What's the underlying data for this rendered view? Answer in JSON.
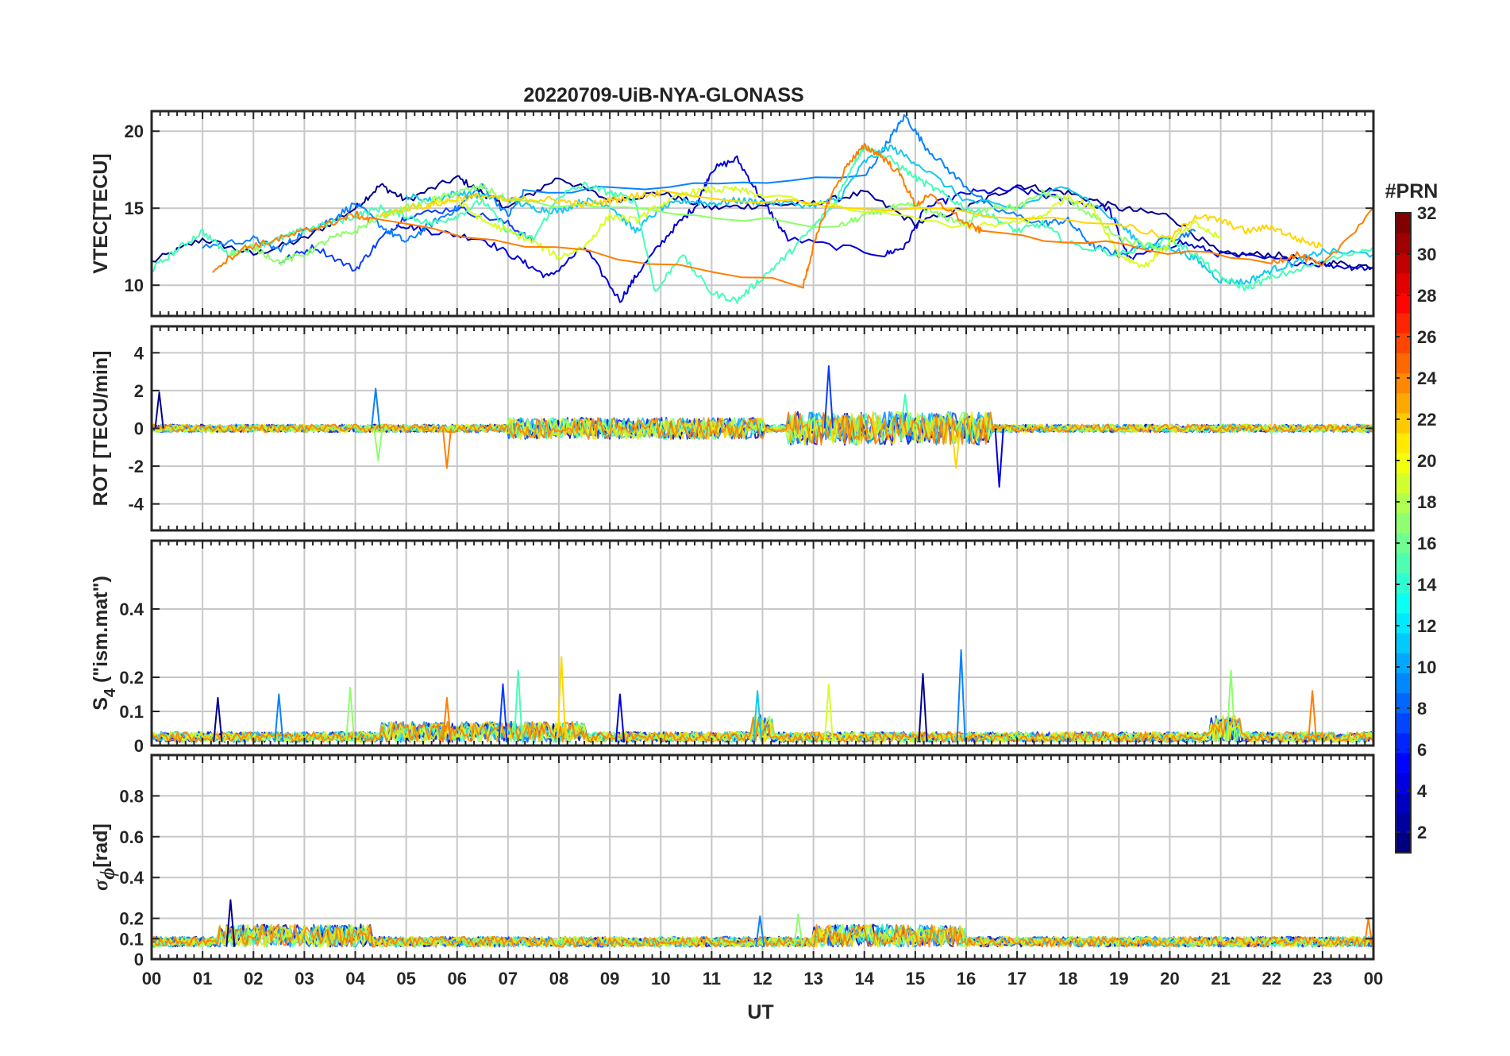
{
  "chart_data": {
    "type": "line",
    "title": "20220709-UiB-NYA-GLONASS",
    "xlabel": "UT",
    "x_ticks": [
      "00",
      "01",
      "02",
      "03",
      "04",
      "05",
      "06",
      "07",
      "08",
      "09",
      "10",
      "11",
      "12",
      "13",
      "14",
      "15",
      "16",
      "17",
      "18",
      "19",
      "20",
      "21",
      "22",
      "23",
      "00"
    ],
    "xlim": [
      0,
      24
    ],
    "colorbar": {
      "label": "#PRN",
      "range": [
        1,
        32
      ],
      "ticks": [
        "32",
        "30",
        "28",
        "26",
        "24",
        "22",
        "20",
        "18",
        "16",
        "14",
        "12",
        "10",
        "8",
        "6",
        "4",
        "2"
      ],
      "colormap": "jet"
    },
    "panels": [
      {
        "id": "vtec",
        "ylabel": "VTEC[TECU]",
        "ylim": [
          8,
          21.3
        ],
        "yticks": [
          10,
          15,
          20
        ],
        "ytick_labels": [
          "10",
          "15",
          "20"
        ],
        "series_colors": [
          "#00008f",
          "#0000d8",
          "#0a3cff",
          "#0a82ff",
          "#12c8f0",
          "#45ffb8",
          "#8cff6a",
          "#d7ff25",
          "#ffd600",
          "#ff7e00"
        ],
        "series": [
          {
            "name": "PRN-2",
            "color": "#00008f",
            "x": [
              0,
              1,
              2,
              3,
              4,
              4.5,
              5,
              6,
              6.5,
              7,
              8,
              9,
              10,
              11,
              12,
              13,
              14,
              15,
              16,
              17,
              18,
              19,
              20,
              21,
              22,
              23,
              24
            ],
            "y": [
              11.5,
              13,
              12,
              13,
              15,
              16.5,
              15.5,
              17,
              16,
              15,
              17,
              15.5,
              16,
              15,
              15.2,
              15.3,
              16,
              14,
              15,
              16.5,
              16,
              15,
              14.5,
              12,
              12,
              11.5,
              11.2
            ]
          },
          {
            "name": "PRN-4",
            "color": "#0000d8",
            "x": [
              4.8,
              5.5,
              6.5,
              7.3,
              7.8,
              8.5,
              9.2,
              9.6,
              10.2,
              10.7,
              11,
              11.5,
              12,
              12.5,
              14.4,
              14.8,
              15.2,
              16,
              17,
              18,
              18.8,
              19.2,
              20.2,
              21,
              22.5,
              23.5,
              24
            ],
            "y": [
              14,
              13.5,
              13,
              11.5,
              10.5,
              12.5,
              9,
              11,
              13.5,
              15.2,
              17.5,
              18.2,
              15.5,
              13,
              12,
              12.5,
              15,
              16,
              16.2,
              15.5,
              15,
              11.7,
              12.8,
              12,
              11.5,
              11.2,
              11.1
            ]
          },
          {
            "name": "PRN-7",
            "color": "#0a3cff",
            "x": [
              2.5,
              3.2,
              4,
              4.5,
              5,
              6,
              7,
              7.5
            ],
            "y": [
              11.5,
              12.5,
              11,
              13,
              14.5,
              15,
              14,
              12.8
            ]
          },
          {
            "name": "PRN-9",
            "color": "#0a82ff",
            "x": [
              1,
              2,
              2.5,
              3,
              3.5,
              4,
              4.6,
              5,
              5.5,
              6,
              6.5,
              7,
              7.3,
              14,
              14.5,
              14.8,
              15.2,
              15.8,
              16.5,
              17.5,
              18,
              18.5,
              19,
              20,
              20.5
            ],
            "y": [
              12.5,
              13,
              12.3,
              13.5,
              14.2,
              15.3,
              13.6,
              12.8,
              14,
              15,
              16.5,
              14.5,
              16,
              17,
              19.5,
              21,
              19,
              17,
              15,
              14,
              14.2,
              12.5,
              12,
              13,
              13.5
            ]
          },
          {
            "name": "PRN-11",
            "color": "#12c8f0",
            "x": [
              5,
              5.5,
              6,
              6.5,
              7,
              7.5,
              8,
              8.5,
              9,
              9.5,
              10,
              10.5,
              11,
              11.5,
              12,
              13,
              13.5,
              14,
              14.5,
              15,
              16,
              17,
              18,
              19,
              19.5,
              20,
              20.5,
              21,
              21.5,
              22,
              22.5,
              23,
              24
            ],
            "y": [
              15.8,
              15.5,
              16,
              15.8,
              15.6,
              15,
              14.8,
              15.5,
              15.2,
              13.5,
              15,
              15.5,
              15.3,
              15.5,
              15.4,
              15.2,
              15.6,
              18,
              19,
              18,
              15.5,
              15,
              16.5,
              14,
              12.5,
              12.5,
              11.7,
              10.3,
              10.2,
              11,
              11.5,
              12.2,
              12
            ]
          },
          {
            "name": "PRN-13",
            "color": "#45ffb8",
            "x": [
              0,
              0.5,
              1,
              1.5,
              2,
              2.5,
              3,
              3.5,
              4,
              4.5,
              5,
              5.5,
              6,
              6.5,
              7,
              7.5,
              8,
              8.5,
              9,
              9.5,
              9.9,
              10.4,
              11,
              11.5,
              12,
              12.5,
              13,
              13.4,
              13.8,
              14,
              14.5,
              15,
              15.5,
              16,
              16.5,
              17,
              17.5,
              18,
              19,
              20,
              20.5,
              21,
              21.5,
              22,
              23,
              24
            ],
            "y": [
              11,
              12.3,
              13.5,
              12,
              12.5,
              13,
              13.6,
              14,
              14.5,
              15,
              14.5,
              14,
              14.5,
              15.5,
              13.5,
              13,
              15.8,
              16.5,
              16,
              15.5,
              9.5,
              12,
              9.5,
              9,
              10.5,
              12,
              13.8,
              15.2,
              18,
              19,
              18.2,
              17,
              16,
              15,
              14.5,
              13.5,
              14,
              12.7,
              12,
              13,
              12,
              10.5,
              9.8,
              10.5,
              11.5,
              12.5
            ]
          },
          {
            "name": "PRN-16",
            "color": "#8cff6a",
            "x": [
              1.5,
              2,
              2.5,
              3,
              3.5,
              4,
              4.5,
              5,
              5.5,
              6,
              6.5,
              7,
              13.5,
              14,
              14.5,
              15,
              15.5,
              16,
              16.5,
              17,
              17.5,
              18,
              18.5,
              19,
              19.5,
              20
            ],
            "y": [
              12,
              12.5,
              11.5,
              12,
              13,
              13.5,
              14.5,
              15,
              15.5,
              16,
              16.4,
              15.5,
              13.8,
              14.5,
              15,
              15.2,
              14.5,
              14,
              15.2,
              15,
              16,
              15.5,
              14.5,
              13,
              12.6,
              12.3
            ]
          },
          {
            "name": "PRN-19",
            "color": "#d7ff25",
            "x": [
              5.5,
              6,
              6.5,
              7,
              7.5,
              8,
              8.5,
              9,
              9.5,
              10,
              10.5,
              11,
              11.5,
              12,
              16,
              17,
              17.5,
              18,
              18.5,
              19,
              19.5,
              20,
              20.5,
              21
            ],
            "y": [
              15.5,
              15.5,
              14.2,
              13.5,
              12.8,
              11.8,
              12.5,
              14.5,
              14.2,
              15.2,
              16,
              16.2,
              16.2,
              15.8,
              13.8,
              14,
              14.5,
              15.8,
              15,
              12,
              11.2,
              12.8,
              14,
              13
            ]
          },
          {
            "name": "PRN-22",
            "color": "#ffd600",
            "x": [
              4.5,
              5,
              5.5,
              6,
              6.5,
              7,
              7.5,
              8,
              8.5,
              9,
              9.5,
              10,
              19,
              20,
              20.5,
              21,
              21.5,
              22,
              22.5,
              23
            ],
            "y": [
              14.5,
              15,
              15.2,
              15.6,
              15.8,
              15.5,
              15.6,
              15.5,
              15.2,
              15.5,
              15.8,
              16,
              14,
              13,
              14.5,
              14.2,
              13.5,
              13.8,
              13,
              12.5
            ]
          },
          {
            "name": "PRN-24",
            "color": "#ff7e00",
            "x": [
              1.2,
              1.8,
              2.3,
              3,
              3.5,
              4,
              4.3,
              12.8,
              13,
              13.3,
              13.7,
              14,
              14.3,
              14.7,
              15,
              15.3,
              16,
              16.3,
              22,
              22.5,
              23,
              24
            ],
            "y": [
              11,
              12.4,
              12.8,
              13.5,
              14,
              14.6,
              14.2,
              10,
              12.5,
              15.5,
              18,
              19,
              18.5,
              17.2,
              15.2,
              15.8,
              14,
              13.5,
              11.5,
              12,
              11.2,
              15
            ]
          }
        ]
      },
      {
        "id": "rot",
        "ylabel": "ROT [TECU/min]",
        "ylim": [
          -5.4,
          5.4
        ],
        "yticks": [
          -4,
          -2,
          0,
          2,
          4
        ],
        "ytick_labels": [
          "-4",
          "-2",
          "0",
          "2",
          "4"
        ],
        "spikes": [
          {
            "x": 0.15,
            "y": 1.9
          },
          {
            "x": 4.4,
            "y": 2.1
          },
          {
            "x": 4.45,
            "y": -1.7
          },
          {
            "x": 5.8,
            "y": -2.1
          },
          {
            "x": 13.3,
            "y": 3.3
          },
          {
            "x": 14.8,
            "y": 1.8
          },
          {
            "x": 15.8,
            "y": -2.1
          },
          {
            "x": 16.65,
            "y": -3.1
          }
        ]
      },
      {
        "id": "s4",
        "ylabel": "S",
        "ylabel_sub": "4",
        "ylabel_tail": "  (\"ism.mat\")",
        "ylim": [
          0,
          0.6
        ],
        "yticks": [
          0,
          0.1,
          0.2,
          0.4
        ],
        "ytick_labels": [
          "0",
          "0.1",
          "0.2",
          "0.4"
        ],
        "spikes": [
          {
            "x": 1.3,
            "y": 0.14
          },
          {
            "x": 2.5,
            "y": 0.15
          },
          {
            "x": 3.9,
            "y": 0.17
          },
          {
            "x": 5.8,
            "y": 0.14
          },
          {
            "x": 6.9,
            "y": 0.18
          },
          {
            "x": 7.2,
            "y": 0.22
          },
          {
            "x": 8.05,
            "y": 0.26
          },
          {
            "x": 9.2,
            "y": 0.15
          },
          {
            "x": 11.9,
            "y": 0.16
          },
          {
            "x": 13.3,
            "y": 0.18
          },
          {
            "x": 15.15,
            "y": 0.21
          },
          {
            "x": 15.9,
            "y": 0.28
          },
          {
            "x": 21.2,
            "y": 0.22
          },
          {
            "x": 22.8,
            "y": 0.16
          }
        ]
      },
      {
        "id": "sigma",
        "ylabel_symbol": "σ",
        "ylabel_sub": "ϕ",
        "ylabel_tail": "[rad]",
        "ylim": [
          0,
          1
        ],
        "yticks": [
          0,
          0.1,
          0.2,
          0.4,
          0.6,
          0.8
        ],
        "ytick_labels": [
          "0",
          "0.1",
          "0.2",
          "0.4",
          "0.6",
          "0.8"
        ],
        "spikes": [
          {
            "x": 1.55,
            "y": 0.29
          },
          {
            "x": 11.95,
            "y": 0.21
          },
          {
            "x": 12.7,
            "y": 0.22
          },
          {
            "x": 23.9,
            "y": 0.2
          }
        ]
      }
    ]
  }
}
